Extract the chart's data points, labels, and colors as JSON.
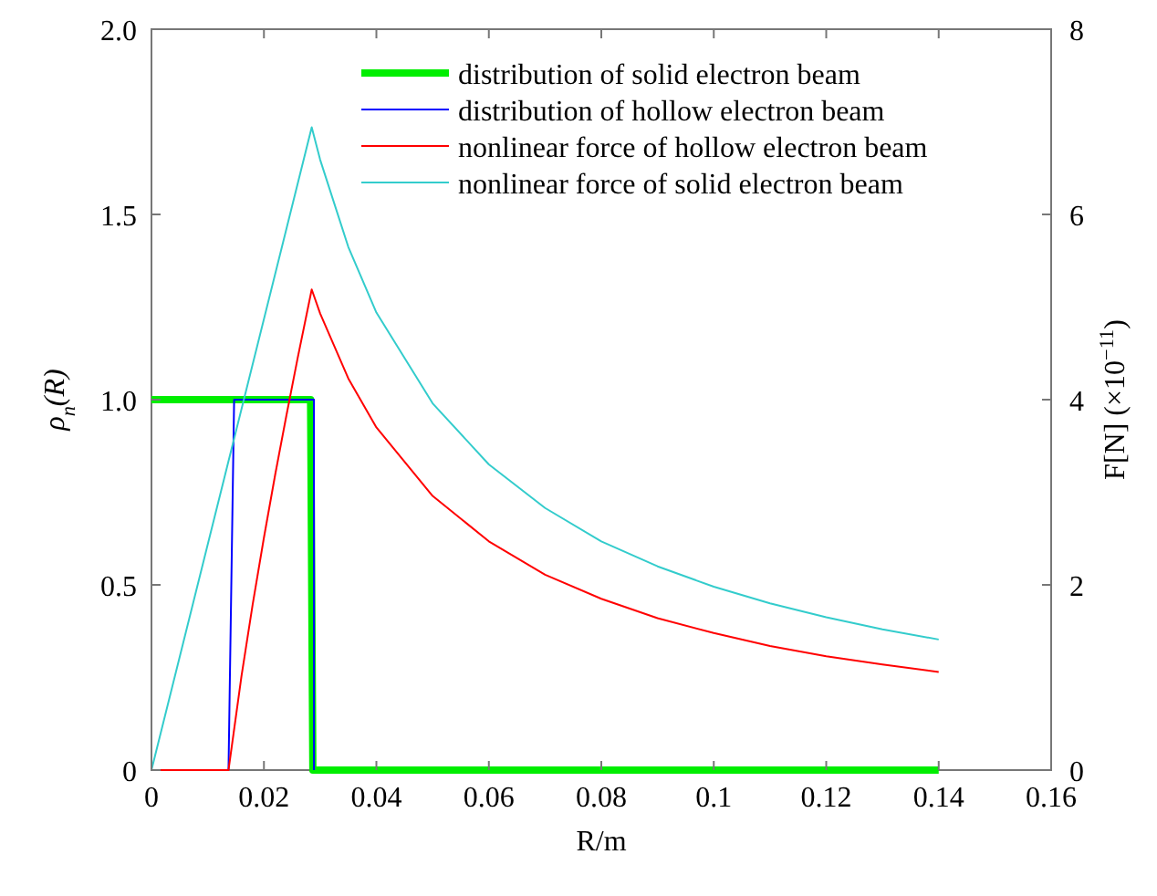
{
  "chart_data": {
    "type": "line",
    "xlabel": "R/m",
    "ylabel": "ρ$_{n}$(R)",
    "y2label": "F[N] (×10$^{−11}$)",
    "xlim": [
      0,
      0.16
    ],
    "xticks": [
      0,
      0.02,
      0.04,
      0.06,
      0.08,
      0.1,
      0.12,
      0.14,
      0.16
    ],
    "ylim": [
      0,
      2
    ],
    "yticks": [
      0,
      0.5,
      {
        "value": 1,
        "label": "1.0"
      },
      1.5,
      {
        "value": 2,
        "label": "2.0"
      }
    ],
    "y2lim": [
      0,
      8
    ],
    "y2ticks": [
      0,
      2,
      4,
      6,
      8
    ],
    "legend": "top right",
    "grid": false,
    "line_style": "solid",
    "marker": "none",
    "series": [
      {
        "name": "distribution of solid electron beam",
        "color": "#00ee00",
        "x": [
          0,
          0.0283,
          0.0287,
          0.14
        ],
        "values": [
          1,
          1,
          0,
          0
        ]
      },
      {
        "name": "distribution of hollow electron beam",
        "color": "#0000ff",
        "x": [
          0.0137,
          0.0147,
          0.0289,
          0.0289
        ],
        "values": [
          0,
          1,
          1,
          0
        ]
      },
      {
        "name": "nonlinear force of hollow electron beam",
        "color": "#ff0000",
        "axis": "y2",
        "x": [
          0,
          0.0137,
          0.016,
          0.018,
          0.02,
          0.022,
          0.024,
          0.026,
          0.0285,
          0.03,
          0.035,
          0.04,
          0.05,
          0.06,
          0.07,
          0.08,
          0.09,
          0.1,
          0.11,
          0.12,
          0.13,
          0.14
        ],
        "values": [
          0,
          0,
          1.01,
          1.79,
          2.51,
          3.19,
          3.83,
          4.45,
          5.19,
          4.93,
          4.23,
          3.7,
          2.96,
          2.47,
          2.11,
          1.85,
          1.64,
          1.48,
          1.34,
          1.23,
          1.14,
          1.06
        ]
      },
      {
        "name": "nonlinear force of solid electron beam",
        "color": "#33cccc",
        "axis": "y2",
        "x": [
          0,
          0.0285,
          0.03,
          0.035,
          0.04,
          0.05,
          0.06,
          0.07,
          0.08,
          0.09,
          0.1,
          0.11,
          0.12,
          0.13,
          0.14
        ],
        "values": [
          0,
          6.94,
          6.59,
          5.65,
          4.94,
          3.96,
          3.3,
          2.83,
          2.47,
          2.2,
          1.98,
          1.8,
          1.65,
          1.52,
          1.41
        ]
      }
    ]
  }
}
